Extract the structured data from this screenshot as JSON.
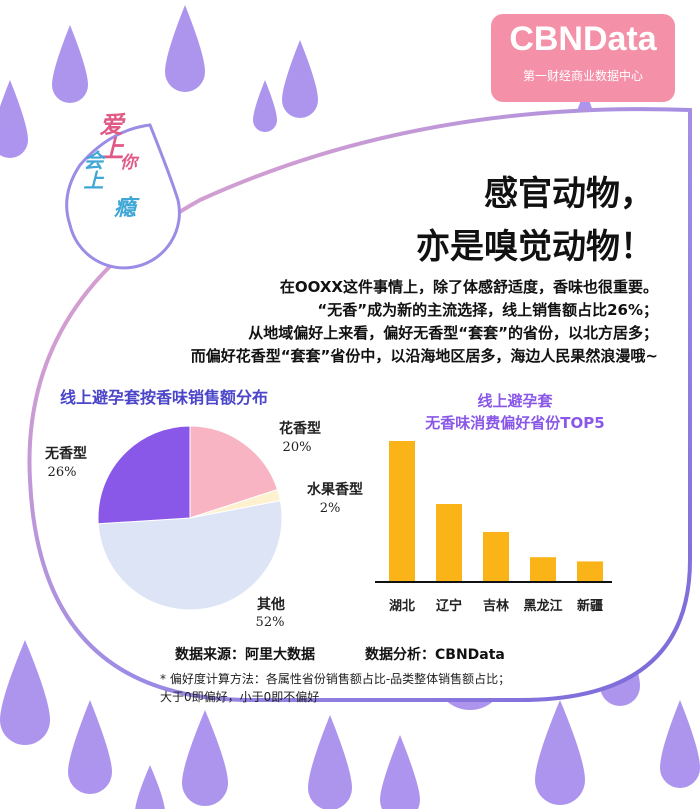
{
  "logo": {
    "title": "CBNData",
    "subtitle": "第一财经商业数据中心"
  },
  "badge": {
    "line1": "爱上",
    "line2": "会上",
    "line3": "你",
    "line4": "瘾"
  },
  "headline": {
    "line1": "感官动物，",
    "line2": "亦是嗅觉动物！"
  },
  "intro": [
    "在OOXX这件事情上，除了体感舒适度，香味也很重要。",
    "“无香”成为新的主流选择，线上销售额占比26%；",
    "从地域偏好上来看，偏好无香型“套套”的省份，以北方居多；",
    "而偏好花香型“套套”省份中，以沿海地区居多，海边人民果然浪漫哦~"
  ],
  "colors": {
    "purple": "#8a58e8",
    "pink": "#f8b4c3",
    "cream": "#fdf1cf",
    "lightblue": "#dde4f5",
    "gold": "#fbb418",
    "brand": "#f491a8"
  },
  "chart_data": [
    {
      "type": "pie",
      "title": "线上避孕套按香味销售额分布",
      "slices": [
        {
          "label": "花香型",
          "value": 20,
          "pct_label": "20%",
          "color": "#f8b4c3"
        },
        {
          "label": "水果香型",
          "value": 2,
          "pct_label": "2%",
          "color": "#fdf1cf"
        },
        {
          "label": "其他",
          "value": 52,
          "pct_label": "52%",
          "color": "#dde4f5"
        },
        {
          "label": "无香型",
          "value": 26,
          "pct_label": "26%",
          "color": "#8a58e8"
        }
      ]
    },
    {
      "type": "bar",
      "title_line1": "线上避孕套",
      "title_line2": "无香味消费偏好省份TOP5",
      "categories": [
        "湖北",
        "辽宁",
        "吉林",
        "黑龙江",
        "新疆"
      ],
      "values": [
        1.0,
        0.55,
        0.35,
        0.17,
        0.14
      ],
      "color": "#fbb418",
      "ylim": [
        0,
        1.0
      ]
    }
  ],
  "source": {
    "data_source": "数据来源：阿里大数据",
    "analysis": "数据分析：CBNData"
  },
  "note": {
    "line1": "* 偏好度计算方法：各属性省份销售额占比-品类整体销售额占比；",
    "line2": "大于0即偏好，小于0即不偏好"
  }
}
